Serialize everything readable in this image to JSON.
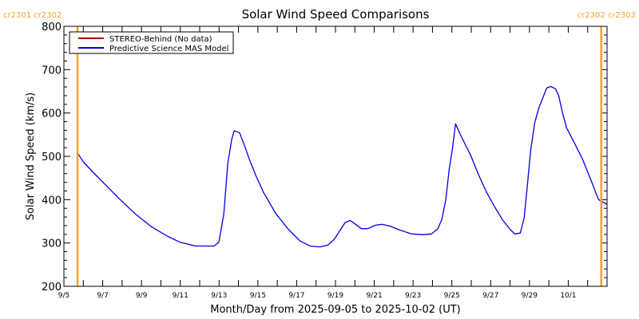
{
  "chart_data": {
    "type": "line",
    "title": "Solar Wind Speed Comparisons",
    "xlabel": "Month/Day from 2025-09-05 to 2025-10-02 (UT)",
    "ylabel": "Solar Wind Speed (km/s)",
    "xlim_days": [
      0,
      28
    ],
    "ylim": [
      200,
      800
    ],
    "yticks": [
      200,
      300,
      400,
      500,
      600,
      700,
      800
    ],
    "yticks_minor_step": 20,
    "xticks": [
      {
        "day": 0,
        "label": "9/5"
      },
      {
        "day": 2,
        "label": "9/7"
      },
      {
        "day": 4,
        "label": "9/9"
      },
      {
        "day": 6,
        "label": "9/11"
      },
      {
        "day": 8,
        "label": "9/13"
      },
      {
        "day": 10,
        "label": "9/15"
      },
      {
        "day": 12,
        "label": "9/17"
      },
      {
        "day": 14,
        "label": "9/19"
      },
      {
        "day": 16,
        "label": "9/21"
      },
      {
        "day": 18,
        "label": "9/23"
      },
      {
        "day": 20,
        "label": "9/25"
      },
      {
        "day": 22,
        "label": "9/27"
      },
      {
        "day": 24,
        "label": "9/29"
      },
      {
        "day": 26,
        "label": "10/1"
      }
    ],
    "grid": false,
    "legend": {
      "position": "top-left",
      "entries": [
        {
          "label": "STEREO-Behind (No data)",
          "color": "#b00000"
        },
        {
          "label": "Predictive Science MAS Model",
          "color": "#0000e0"
        }
      ]
    },
    "carrington_markers": [
      {
        "day": 0.7,
        "label": "cr2301 cr2302",
        "color": "#f5a030"
      },
      {
        "day": 27.7,
        "label": "cr2302 cr2303",
        "color": "#f5a030"
      }
    ],
    "series": [
      {
        "name": "Predictive Science MAS Model",
        "color": "#0000e0",
        "x_days": [
          0.7,
          0.99,
          1.44,
          2.06,
          2.88,
          3.71,
          4.53,
          5.36,
          5.97,
          6.8,
          7.5,
          7.75,
          7.99,
          8.24,
          8.45,
          8.65,
          8.78,
          9.06,
          9.27,
          9.56,
          9.89,
          10.3,
          10.92,
          11.54,
          12.16,
          12.69,
          13.19,
          13.6,
          13.93,
          14.22,
          14.5,
          14.75,
          15.04,
          15.33,
          15.66,
          16.07,
          16.4,
          16.81,
          17.31,
          17.92,
          18.54,
          18.95,
          19.28,
          19.49,
          19.69,
          19.86,
          20.02,
          20.19,
          20.31,
          20.48,
          20.97,
          21.39,
          21.8,
          22.21,
          22.62,
          23.03,
          23.24,
          23.53,
          23.73,
          23.9,
          24.06,
          24.27,
          24.48,
          24.68,
          24.89,
          25.09,
          25.34,
          25.51,
          25.67,
          25.91,
          26.33,
          26.74,
          27.15,
          27.56,
          28.0
        ],
        "y_kmps": [
          508,
          488,
          466,
          438,
          401,
          366,
          337,
          315,
          302,
          293,
          293,
          293,
          302,
          365,
          484,
          539,
          559,
          554,
          530,
          493,
          456,
          416,
          368,
          333,
          305,
          293,
          291,
          295,
          308,
          328,
          347,
          352,
          343,
          333,
          333,
          341,
          343,
          339,
          330,
          321,
          319,
          321,
          333,
          355,
          401,
          469,
          515,
          575,
          563,
          546,
          502,
          456,
          416,
          383,
          353,
          330,
          321,
          323,
          359,
          436,
          513,
          577,
          611,
          634,
          658,
          661,
          656,
          640,
          607,
          566,
          530,
          493,
          447,
          400,
          389
        ]
      },
      {
        "name": "STEREO-Behind (No data)",
        "color": "#b00000",
        "x_days": [],
        "y_kmps": []
      }
    ]
  }
}
